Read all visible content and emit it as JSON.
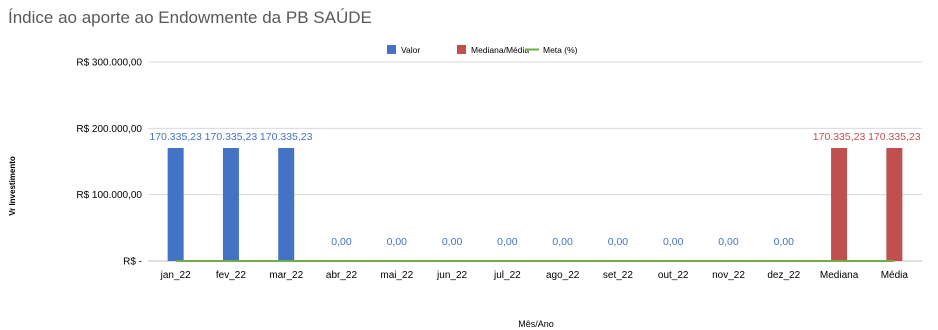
{
  "chart_data": {
    "type": "bar",
    "title": "Índice ao aporte ao Endowmente da PB SAÚDE",
    "xlabel": "Mês/Ano",
    "ylabel": "Vr Investimento",
    "ylim": [
      0,
      300000
    ],
    "y_ticks": [
      {
        "value": 0,
        "label": "R$ -"
      },
      {
        "value": 100000,
        "label": "R$ 100.000,00"
      },
      {
        "value": 200000,
        "label": "R$ 200.000,00"
      },
      {
        "value": 300000,
        "label": "R$ 300.000,00"
      }
    ],
    "grid": true,
    "legend_position": "top-center",
    "categories": [
      "jan_22",
      "fev_22",
      "mar_22",
      "abr_22",
      "mai_22",
      "jun_22",
      "jul_22",
      "ago_22",
      "set_22",
      "out_22",
      "nov_22",
      "dez_22",
      "Mediana",
      "Média"
    ],
    "series": [
      {
        "name": "Valor",
        "type": "bar",
        "color": "#4472C4",
        "values": [
          170335.23,
          170335.23,
          170335.23,
          0,
          0,
          0,
          0,
          0,
          0,
          0,
          0,
          0,
          null,
          null
        ],
        "labels": [
          "170.335,23",
          "170.335,23",
          "170.335,23",
          "0,00",
          "0,00",
          "0,00",
          "0,00",
          "0,00",
          "0,00",
          "0,00",
          "0,00",
          "0,00",
          null,
          null
        ]
      },
      {
        "name": "Mediana/Média",
        "type": "bar",
        "color": "#C0504D",
        "values": [
          null,
          null,
          null,
          null,
          null,
          null,
          null,
          null,
          null,
          null,
          null,
          null,
          170335.23,
          170335.23
        ],
        "labels": [
          null,
          null,
          null,
          null,
          null,
          null,
          null,
          null,
          null,
          null,
          null,
          null,
          "170.335,23",
          "170.335,23"
        ]
      },
      {
        "name": "Meta (%)",
        "type": "line",
        "color": "#70AD47",
        "values": [
          0,
          0,
          0,
          0,
          0,
          0,
          0,
          0,
          0,
          0,
          0,
          0,
          0,
          0
        ]
      }
    ]
  }
}
